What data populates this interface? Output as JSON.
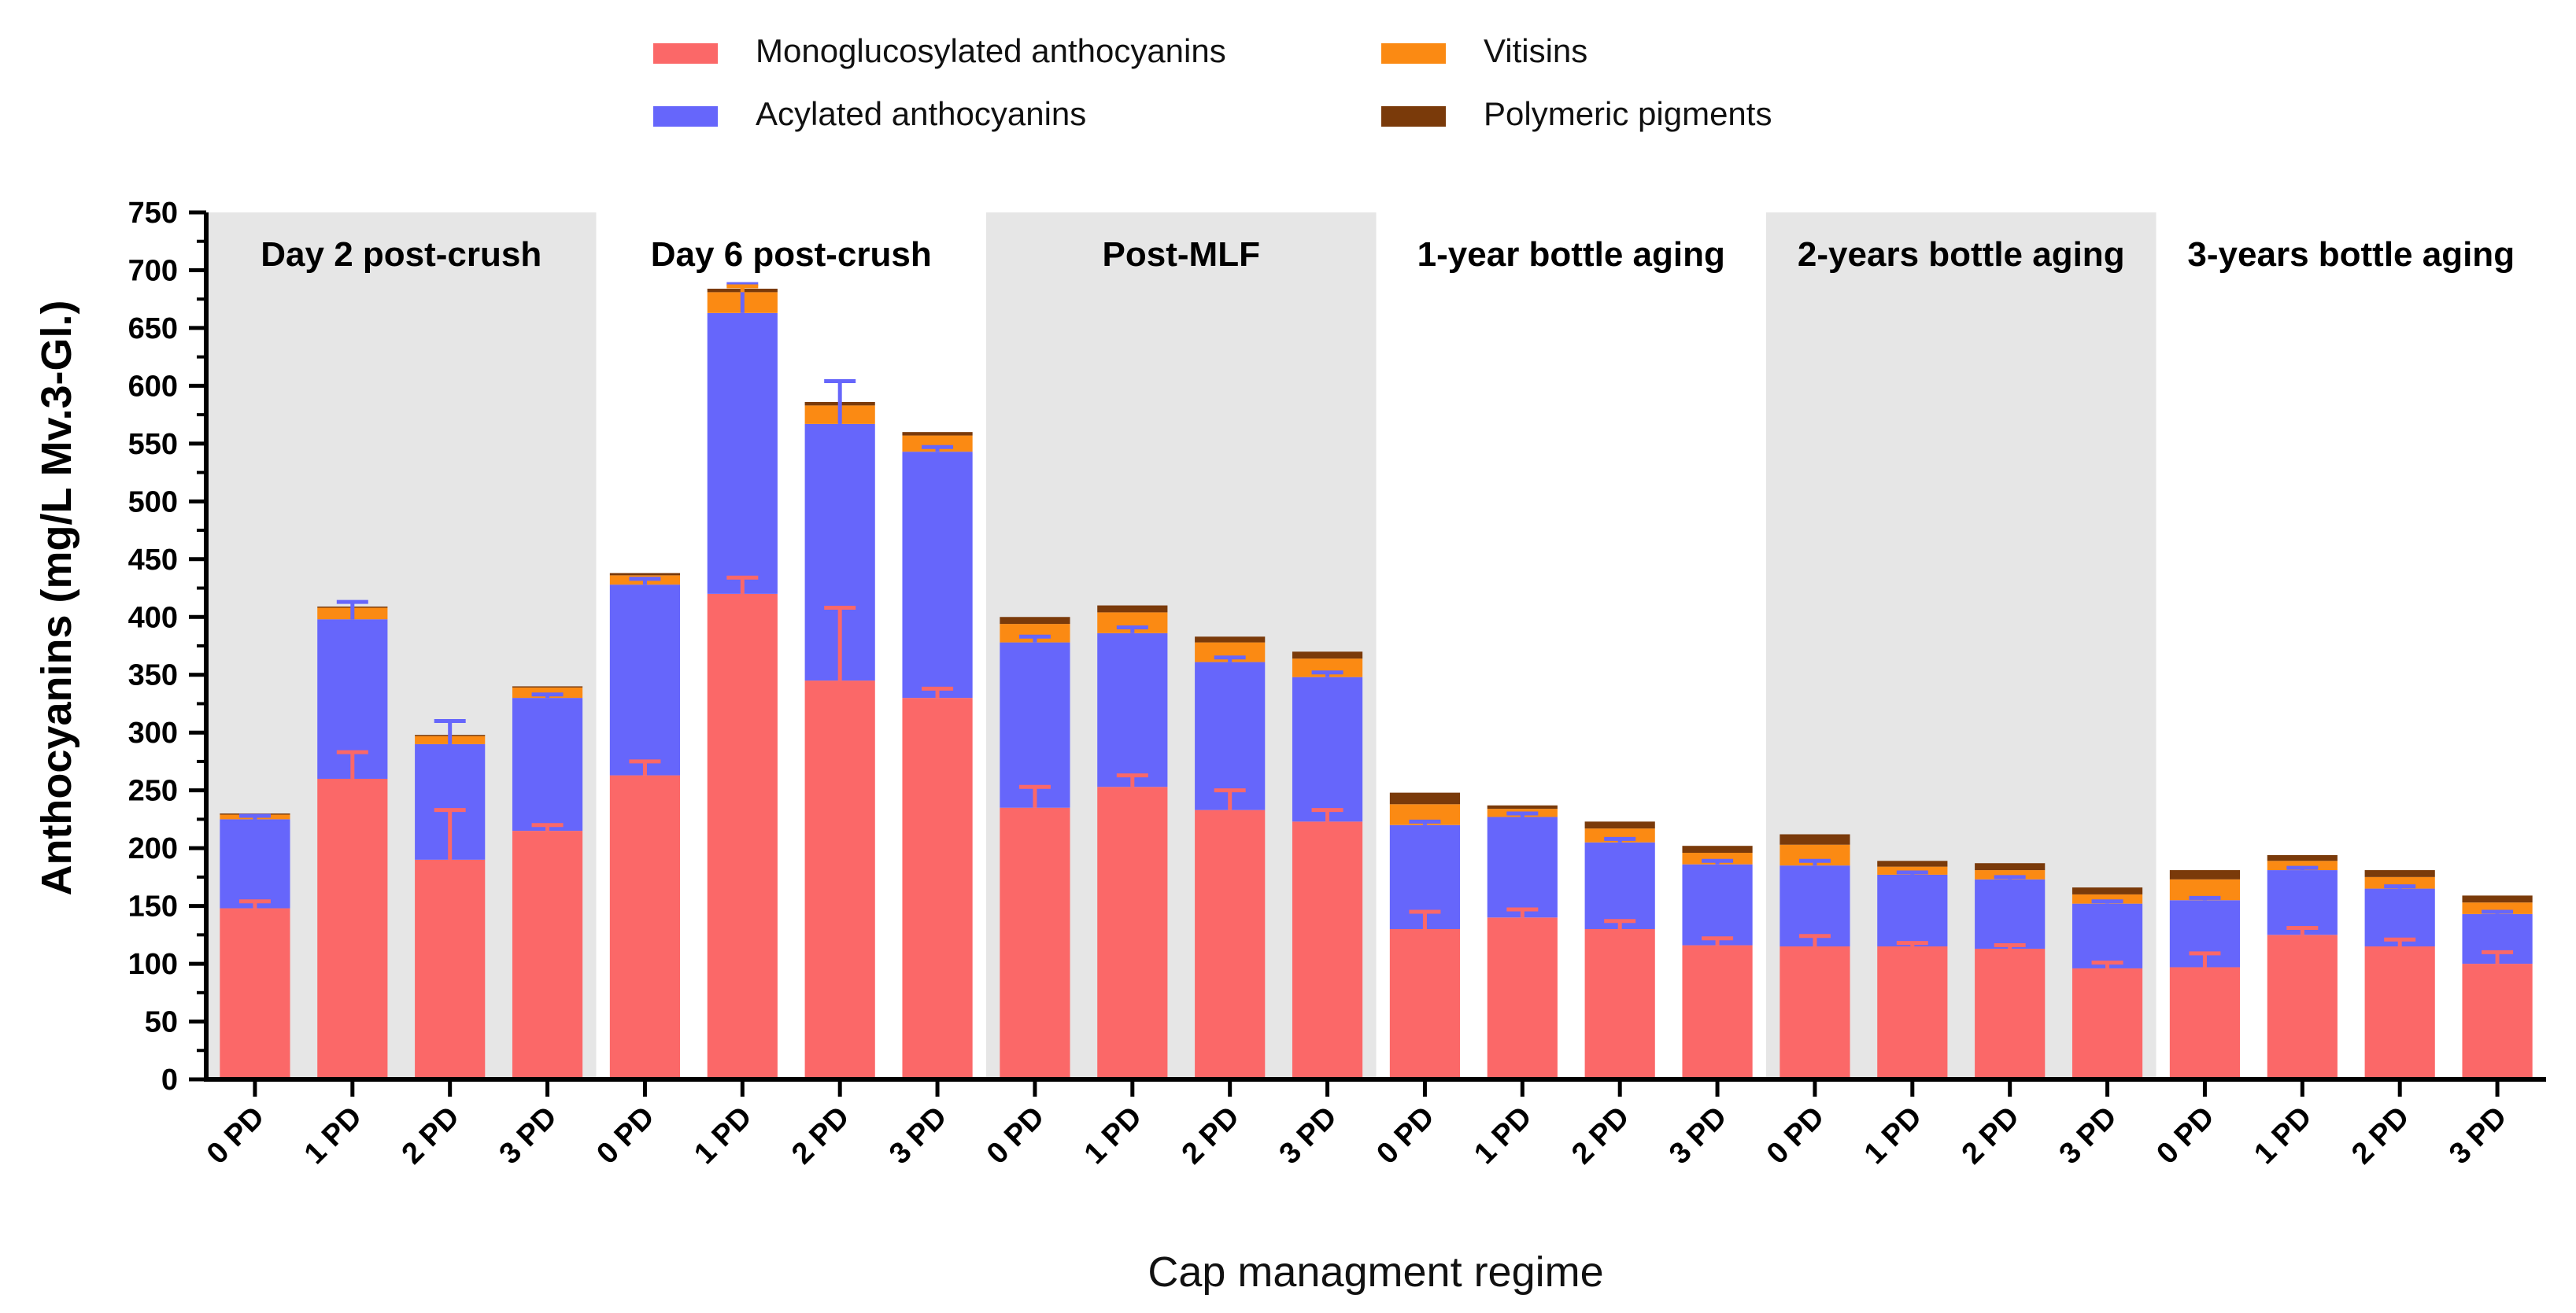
{
  "chart_data": {
    "type": "bar",
    "stacked": true,
    "title": "",
    "ylabel": "Anthocyanins (mg/L Mv.3-Gl.)",
    "xlabel": "Cap managment regime",
    "ylim": [
      0,
      750
    ],
    "yticks": [
      0,
      50,
      100,
      150,
      200,
      250,
      300,
      350,
      400,
      450,
      500,
      550,
      600,
      650,
      700,
      750
    ],
    "legend_position": "top",
    "colors": {
      "Monoglucosylated anthocyanins": "#fb6868",
      "Acylated anthocyanins": "#6666fb",
      "Vitisins": "#fb8a13",
      "Polymeric pigments": "#7a3a0a",
      "panel_shade": "#e6e6e6"
    },
    "legend": [
      "Monoglucosylated anthocyanins",
      "Vitisins",
      "Acylated anthocyanins",
      "Polymeric pigments"
    ],
    "panels": [
      "Day 2 post-crush",
      "Day 6 post-crush",
      "Post-MLF",
      "1-year bottle aging",
      "2-years bottle aging",
      "3-years bottle aging"
    ],
    "panel_shaded": [
      true,
      false,
      true,
      false,
      true,
      false
    ],
    "categories": [
      "0 PD",
      "1 PD",
      "2 PD",
      "3 PD",
      "0 PD",
      "1 PD",
      "2 PD",
      "3 PD",
      "0 PD",
      "1 PD",
      "2 PD",
      "3 PD",
      "0 PD",
      "1 PD",
      "2 PD",
      "3 PD",
      "0 PD",
      "1 PD",
      "2 PD",
      "3 PD",
      "0 PD",
      "1 PD",
      "2 PD",
      "3 PD"
    ],
    "series": [
      {
        "name": "Monoglucosylated anthocyanins",
        "values": [
          148,
          260,
          190,
          215,
          263,
          420,
          345,
          330,
          235,
          253,
          233,
          223,
          130,
          140,
          130,
          116,
          115,
          115,
          113,
          96,
          97,
          125,
          115,
          100
        ],
        "error": [
          6,
          23,
          43,
          5,
          12,
          14,
          63,
          8,
          18,
          10,
          17,
          10,
          15,
          7,
          7,
          6,
          9,
          3,
          3,
          5,
          12,
          6,
          6,
          10
        ]
      },
      {
        "name": "Acylated anthocyanins",
        "values": [
          77,
          138,
          100,
          115,
          165,
          243,
          222,
          213,
          143,
          133,
          128,
          125,
          90,
          87,
          75,
          70,
          70,
          62,
          60,
          56,
          58,
          56,
          50,
          43
        ],
        "error": [
          3,
          15,
          20,
          3,
          5,
          25,
          37,
          4,
          5,
          5,
          4,
          4,
          3,
          3,
          3,
          3,
          4,
          2,
          2,
          2,
          2,
          2,
          2,
          2
        ]
      },
      {
        "name": "Vitisins",
        "values": [
          4,
          10,
          7,
          9,
          8,
          18,
          16,
          14,
          16,
          18,
          17,
          16,
          18,
          7,
          12,
          10,
          18,
          7,
          8,
          8,
          18,
          8,
          10,
          10
        ],
        "error": [
          0,
          0,
          0,
          0,
          0,
          5,
          0,
          0,
          0,
          0,
          0,
          0,
          0,
          0,
          0,
          0,
          0,
          0,
          0,
          0,
          0,
          0,
          0,
          0
        ]
      },
      {
        "name": "Polymeric pigments",
        "values": [
          1,
          1,
          1,
          1,
          2,
          3,
          3,
          3,
          6,
          6,
          5,
          6,
          10,
          3,
          6,
          6,
          9,
          5,
          6,
          6,
          8,
          5,
          6,
          6
        ],
        "error": [
          0,
          0,
          0,
          0,
          0,
          0,
          0,
          0,
          0,
          0,
          0,
          0,
          0,
          0,
          0,
          0,
          0,
          0,
          0,
          0,
          0,
          0,
          0,
          0
        ]
      }
    ]
  }
}
